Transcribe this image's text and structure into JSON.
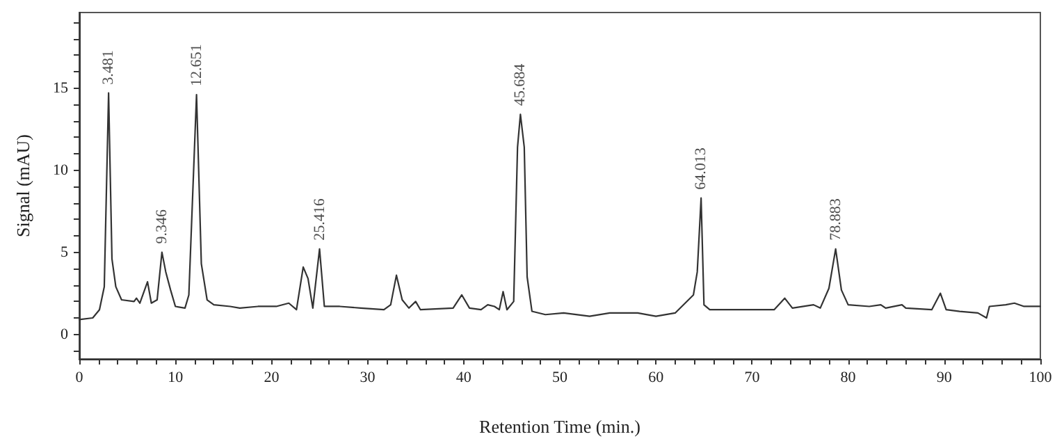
{
  "chart_data": {
    "type": "line",
    "xlabel": "Retention Time (min.)",
    "ylabel": "Signal (mAU)",
    "xlim": [
      0,
      100
    ],
    "xticks": [
      0,
      {
        "value": 2,
        "label": null
      },
      {
        "value": 4,
        "label": null
      },
      {
        "value": 6,
        "label": null
      },
      {
        "value": 8,
        "label": null
      },
      10,
      {
        "value": 12,
        "label": null
      },
      {
        "value": 14,
        "label": null
      },
      {
        "value": 16,
        "label": null
      },
      {
        "value": 18,
        "label": null
      },
      20,
      {
        "value": 22,
        "label": null
      },
      {
        "value": 24,
        "label": null
      },
      {
        "value": 26,
        "label": null
      },
      {
        "value": 28,
        "label": null
      },
      30,
      {
        "value": 32,
        "label": null
      },
      {
        "value": 34,
        "label": null
      },
      {
        "value": 36,
        "label": null
      },
      {
        "value": 38,
        "label": null
      },
      40,
      {
        "value": 42,
        "label": null
      },
      {
        "value": 44,
        "label": null
      },
      {
        "value": 46,
        "label": null
      },
      {
        "value": 48,
        "label": null
      },
      50,
      {
        "value": 52,
        "label": null
      },
      {
        "value": 54,
        "label": null
      },
      {
        "value": 56,
        "label": null
      },
      {
        "value": 58,
        "label": null
      },
      60,
      {
        "value": 62,
        "label": null
      },
      {
        "value": 64,
        "label": null
      },
      {
        "value": 66,
        "label": null
      },
      {
        "value": 68,
        "label": null
      },
      70,
      {
        "value": 72,
        "label": null
      },
      {
        "value": 74,
        "label": null
      },
      {
        "value": 76,
        "label": null
      },
      {
        "value": 78,
        "label": null
      },
      80,
      {
        "value": 82,
        "label": null
      },
      {
        "value": 84,
        "label": null
      },
      {
        "value": 86,
        "label": null
      },
      {
        "value": 88,
        "label": null
      },
      90,
      {
        "value": 92,
        "label": null
      },
      {
        "value": 94,
        "label": null
      },
      {
        "value": 96,
        "label": null
      },
      {
        "value": 98,
        "label": null
      },
      100
    ],
    "ylim": [
      -1.5,
      19.6
    ],
    "yticks": [
      {
        "value": -1,
        "label": null
      },
      0,
      {
        "value": 1,
        "label": null
      },
      {
        "value": 2,
        "label": null
      },
      {
        "value": 3,
        "label": null
      },
      {
        "value": 4,
        "label": null
      },
      5,
      {
        "value": 6,
        "label": null
      },
      {
        "value": 7,
        "label": null
      },
      {
        "value": 8,
        "label": null
      },
      {
        "value": 9,
        "label": null
      },
      10,
      {
        "value": 11,
        "label": null
      },
      {
        "value": 12,
        "label": null
      },
      {
        "value": 13,
        "label": null
      },
      {
        "value": 14,
        "label": null
      },
      15,
      {
        "value": 16,
        "label": null
      },
      {
        "value": 17,
        "label": null
      },
      {
        "value": 18,
        "label": null
      },
      {
        "value": 19,
        "label": null
      }
    ],
    "grid": false,
    "marker": "none",
    "line_style": "solid",
    "series": [
      {
        "color": "#333333",
        "x": [
          0,
          1.4,
          2.1,
          2.6,
          3.05,
          3.4,
          3.8,
          4.4,
          5.7,
          5.95,
          6.3,
          7.1,
          7.5,
          8.1,
          8.6,
          9.0,
          9.5,
          10,
          11,
          11.4,
          12.2,
          12.7,
          13.3,
          14.0,
          15.7,
          16.7,
          18.6,
          20.5,
          21.8,
          22.6,
          23.3,
          23.8,
          24.3,
          25.0,
          25.5,
          27.1,
          29.3,
          31.7,
          32.4,
          33.0,
          33.6,
          34.3,
          35.0,
          35.5,
          38.9,
          39.8,
          40.6,
          41.8,
          42.5,
          43.2,
          43.7,
          44.1,
          44.5,
          45.2,
          45.6,
          45.9,
          46.3,
          46.6,
          47.1,
          48.5,
          50.4,
          53.1,
          55.2,
          58.1,
          60,
          62,
          63.9,
          64.3,
          64.7,
          65.0,
          65.6,
          68.5,
          72.3,
          73.4,
          74.2,
          76.4,
          77.1,
          78.0,
          78.7,
          79.3,
          80,
          82.2,
          83.4,
          83.9,
          85.6,
          86.0,
          88.7,
          89.6,
          90.2,
          91.6,
          93.5,
          94.4,
          94.7,
          96.4,
          97.3,
          98.3,
          100
        ],
        "values": [
          0.9,
          1.0,
          1.5,
          2.9,
          14.7,
          4.6,
          2.9,
          2.1,
          2.0,
          2.2,
          1.9,
          3.2,
          1.9,
          2.1,
          5.0,
          3.8,
          2.7,
          1.7,
          1.6,
          2.4,
          14.6,
          4.3,
          2.1,
          1.8,
          1.7,
          1.6,
          1.7,
          1.7,
          1.9,
          1.5,
          4.1,
          3.4,
          1.6,
          5.2,
          1.7,
          1.7,
          1.6,
          1.5,
          1.8,
          3.6,
          2.1,
          1.6,
          2.0,
          1.5,
          1.6,
          2.4,
          1.6,
          1.5,
          1.8,
          1.7,
          1.5,
          2.6,
          1.5,
          2.0,
          11.4,
          13.4,
          11.4,
          3.5,
          1.4,
          1.2,
          1.3,
          1.1,
          1.3,
          1.3,
          1.1,
          1.3,
          2.4,
          3.8,
          8.3,
          1.8,
          1.5,
          1.5,
          1.5,
          2.2,
          1.6,
          1.8,
          1.6,
          2.8,
          5.2,
          2.7,
          1.8,
          1.7,
          1.8,
          1.6,
          1.8,
          1.6,
          1.5,
          2.5,
          1.5,
          1.4,
          1.3,
          1.0,
          1.7,
          1.8,
          1.9,
          1.7,
          1.7
        ]
      }
    ],
    "annotations": [
      {
        "text": "3.481",
        "x": 3.05,
        "y": 14.7
      },
      {
        "text": "9.346",
        "x": 8.6,
        "y": 5.0
      },
      {
        "text": "12.651",
        "x": 12.2,
        "y": 14.6
      },
      {
        "text": "25.416",
        "x": 25.0,
        "y": 5.2
      },
      {
        "text": "45.684",
        "x": 45.9,
        "y": 13.4
      },
      {
        "text": "64.013",
        "x": 64.7,
        "y": 8.3
      },
      {
        "text": "78.883",
        "x": 78.7,
        "y": 5.2
      }
    ]
  }
}
